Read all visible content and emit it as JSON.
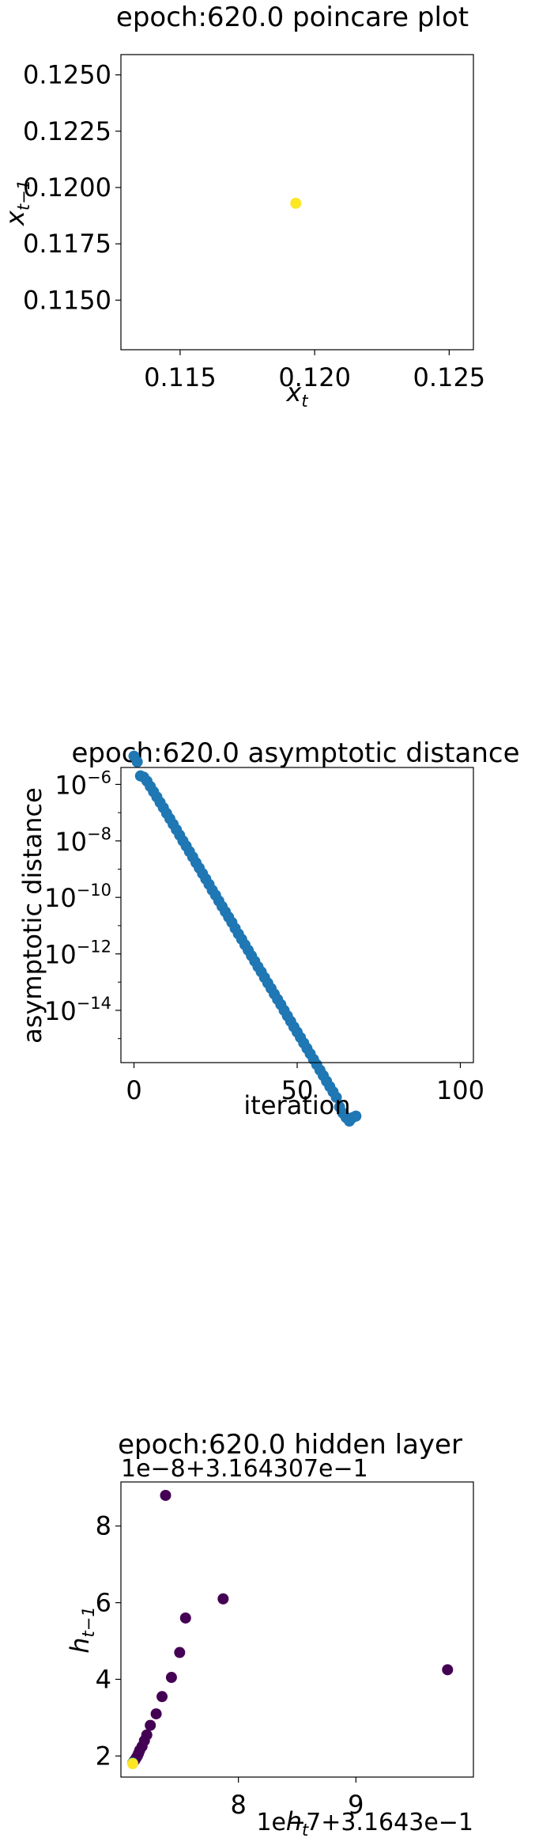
{
  "chart_data": [
    {
      "type": "scatter",
      "title": "epoch:620.0 poincare plot",
      "xlabel": "x_t",
      "ylabel": "x_{t−1}",
      "xlim": [
        0.1128,
        0.1259
      ],
      "ylim": [
        0.1128,
        0.1259
      ],
      "xticks": [
        0.115,
        0.12,
        0.125
      ],
      "xtick_labels": [
        "0.115",
        "0.120",
        "0.125"
      ],
      "yticks": [
        0.115,
        0.1175,
        0.12,
        0.1225,
        0.125
      ],
      "ytick_labels": [
        "0.1150",
        "0.1175",
        "0.1200",
        "0.1225",
        "0.1250"
      ],
      "points": [
        {
          "x": 0.1193,
          "y": 0.1193
        }
      ],
      "point_color": "#fde725",
      "grid": false
    },
    {
      "type": "scatter",
      "title": "epoch:620.0 asymptotic distance",
      "xlabel": "iteration",
      "ylabel": "asymptotic distance",
      "yscale": "log",
      "xlim": [
        -4,
        104
      ],
      "ylim_log10": [
        -15.85,
        -5.4
      ],
      "xticks": [
        0,
        50,
        100
      ],
      "xtick_labels": [
        "0",
        "50",
        "100"
      ],
      "yticks_exp": [
        -6,
        -8,
        -10,
        -12,
        -14
      ],
      "ytick_base": "10",
      "points": [
        {
          "x": 0,
          "y": 1e-05
        },
        {
          "x": 1,
          "y": 6.3e-06
        },
        {
          "x": 2,
          "y": 2e-06
        },
        {
          "x": 3,
          "y": 1.8e-06
        },
        {
          "x": 4,
          "y": 1.3e-06
        },
        {
          "x": 5,
          "y": 8.5e-07
        },
        {
          "x": 6,
          "y": 5.5e-07
        },
        {
          "x": 7,
          "y": 3.6e-07
        },
        {
          "x": 8,
          "y": 2.3e-07
        },
        {
          "x": 9,
          "y": 1.5e-07
        },
        {
          "x": 10,
          "y": 9.5e-08
        },
        {
          "x": 11,
          "y": 6.1e-08
        },
        {
          "x": 12,
          "y": 3.9e-08
        },
        {
          "x": 13,
          "y": 2.5e-08
        },
        {
          "x": 14,
          "y": 1.6e-08
        },
        {
          "x": 15,
          "y": 1e-08
        },
        {
          "x": 16,
          "y": 6.6e-09
        },
        {
          "x": 17,
          "y": 4.2e-09
        },
        {
          "x": 18,
          "y": 2.7e-09
        },
        {
          "x": 19,
          "y": 1.7e-09
        },
        {
          "x": 20,
          "y": 1.1e-09
        },
        {
          "x": 21,
          "y": 7e-10
        },
        {
          "x": 22,
          "y": 4.5e-10
        },
        {
          "x": 23,
          "y": 2.9e-10
        },
        {
          "x": 24,
          "y": 1.8e-10
        },
        {
          "x": 25,
          "y": 1.2e-10
        },
        {
          "x": 26,
          "y": 7.5e-11
        },
        {
          "x": 27,
          "y": 4.8e-11
        },
        {
          "x": 28,
          "y": 3.1e-11
        },
        {
          "x": 29,
          "y": 2e-11
        },
        {
          "x": 30,
          "y": 1.3e-11
        },
        {
          "x": 31,
          "y": 8e-12
        },
        {
          "x": 32,
          "y": 5.1e-12
        },
        {
          "x": 33,
          "y": 3.3e-12
        },
        {
          "x": 34,
          "y": 2.1e-12
        },
        {
          "x": 35,
          "y": 1.35e-12
        },
        {
          "x": 36,
          "y": 8.6e-13
        },
        {
          "x": 37,
          "y": 5.5e-13
        },
        {
          "x": 38,
          "y": 3.5e-13
        },
        {
          "x": 39,
          "y": 2.3e-13
        },
        {
          "x": 40,
          "y": 1.45e-13
        },
        {
          "x": 41,
          "y": 9.3e-14
        },
        {
          "x": 42,
          "y": 6e-14
        },
        {
          "x": 43,
          "y": 3.8e-14
        },
        {
          "x": 44,
          "y": 2.45e-14
        },
        {
          "x": 45,
          "y": 1.6e-14
        },
        {
          "x": 46,
          "y": 1e-14
        },
        {
          "x": 47,
          "y": 6.4e-15
        },
        {
          "x": 48,
          "y": 4.1e-15
        },
        {
          "x": 49,
          "y": 2.6e-15
        },
        {
          "x": 50,
          "y": 1.7e-15
        },
        {
          "x": 51,
          "y": 1.1e-15
        },
        {
          "x": 52,
          "y": 7e-16
        },
        {
          "x": 53,
          "y": 4.5e-16
        },
        {
          "x": 54,
          "y": 2.9e-16
        },
        {
          "x": 55,
          "y": 1.85e-16
        },
        {
          "x": 56,
          "y": 1.2e-16
        },
        {
          "x": 57,
          "y": 7.6e-17
        },
        {
          "x": 58,
          "y": 4.9e-17
        },
        {
          "x": 59,
          "y": 3.1e-17
        },
        {
          "x": 60,
          "y": 2e-17
        },
        {
          "x": 61,
          "y": 1.3e-17
        },
        {
          "x": 62,
          "y": 8.3e-18
        },
        {
          "x": 63,
          "y": 3.8e-18
        },
        {
          "x": 64,
          "y": 2.3e-18
        },
        {
          "x": 65,
          "y": 1.6e-18
        },
        {
          "x": 66,
          "y": 1.2e-18
        },
        {
          "x": 67,
          "y": 1.6e-18
        },
        {
          "x": 68,
          "y": 1.8e-18
        }
      ],
      "point_color": "#1f77b4",
      "grid": false
    },
    {
      "type": "scatter",
      "title": "epoch:620.0 hidden layer",
      "xlabel": "h_t",
      "ylabel": "h_{t−1}",
      "x_offset_text": "1e−7+3.1643e−1",
      "y_offset_text": "1e−8+3.164307e−1",
      "xlim": [
        7.0,
        10.0
      ],
      "ylim": [
        1.45,
        9.15
      ],
      "xticks": [
        8,
        9
      ],
      "xtick_labels": [
        "8",
        "9"
      ],
      "yticks": [
        2,
        4,
        6,
        8
      ],
      "ytick_labels": [
        "2",
        "4",
        "6",
        "8"
      ],
      "points": [
        {
          "x": 7.38,
          "y": 8.8,
          "c": 0.0
        },
        {
          "x": 9.78,
          "y": 4.25,
          "c": 0.0
        },
        {
          "x": 7.87,
          "y": 6.1,
          "c": 0.0
        },
        {
          "x": 7.55,
          "y": 5.6,
          "c": 0.0
        },
        {
          "x": 7.5,
          "y": 4.7,
          "c": 0.0
        },
        {
          "x": 7.43,
          "y": 4.05,
          "c": 0.0
        },
        {
          "x": 7.35,
          "y": 3.55,
          "c": 0.0
        },
        {
          "x": 7.3,
          "y": 3.1,
          "c": 0.0
        },
        {
          "x": 7.25,
          "y": 2.8,
          "c": 0.0
        },
        {
          "x": 7.22,
          "y": 2.55,
          "c": 0.0
        },
        {
          "x": 7.2,
          "y": 2.4,
          "c": 0.0
        },
        {
          "x": 7.18,
          "y": 2.25,
          "c": 0.0
        },
        {
          "x": 7.16,
          "y": 2.15,
          "c": 0.0
        },
        {
          "x": 7.15,
          "y": 2.07,
          "c": 0.0
        },
        {
          "x": 7.14,
          "y": 2.0,
          "c": 0.0
        },
        {
          "x": 7.13,
          "y": 1.95,
          "c": 0.0
        },
        {
          "x": 7.12,
          "y": 1.9,
          "c": 0.0
        },
        {
          "x": 7.11,
          "y": 1.86,
          "c": 0.0
        },
        {
          "x": 7.1,
          "y": 1.82,
          "c": 0.5
        },
        {
          "x": 7.1,
          "y": 1.8,
          "c": 1.0
        }
      ],
      "colormap_low": "#440154",
      "colormap_mid": "#21918c",
      "colormap_high": "#fde725",
      "grid": false
    }
  ]
}
